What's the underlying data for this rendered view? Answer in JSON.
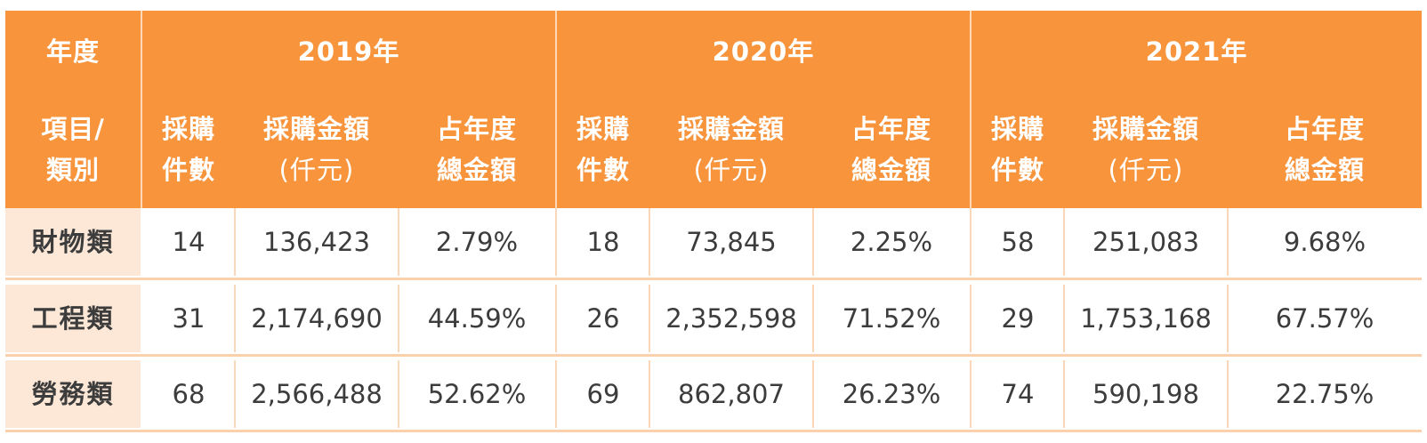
{
  "header": {
    "year_label": "年度",
    "item_label": [
      "項目/",
      "類別"
    ],
    "years": [
      "2019年",
      "2020年",
      "2021年"
    ],
    "col_count": [
      "採購",
      "件數"
    ],
    "col_amount": [
      "採購金額",
      "(仟元)"
    ],
    "col_share": [
      "占年度",
      "總金額"
    ]
  },
  "rows": [
    {
      "category": "財物類",
      "y2019": {
        "count": "14",
        "amount": "136,423",
        "share": "2.79%"
      },
      "y2020": {
        "count": "18",
        "amount": "73,845",
        "share": "2.25%"
      },
      "y2021": {
        "count": "58",
        "amount": "251,083",
        "share": "9.68%"
      }
    },
    {
      "category": "工程類",
      "y2019": {
        "count": "31",
        "amount": "2,174,690",
        "share": "44.59%"
      },
      "y2020": {
        "count": "26",
        "amount": "2,352,598",
        "share": "71.52%"
      },
      "y2021": {
        "count": "29",
        "amount": "1,753,168",
        "share": "67.57%"
      }
    },
    {
      "category": "勞務類",
      "y2019": {
        "count": "68",
        "amount": "2,566,488",
        "share": "52.62%"
      },
      "y2020": {
        "count": "69",
        "amount": "862,807",
        "share": "26.23%"
      },
      "y2021": {
        "count": "74",
        "amount": "590,198",
        "share": "22.75%"
      }
    }
  ],
  "colors": {
    "header_bg": "#f7943c",
    "first_col_bg": "#fde8d7",
    "divider": "#fbd0ad"
  }
}
